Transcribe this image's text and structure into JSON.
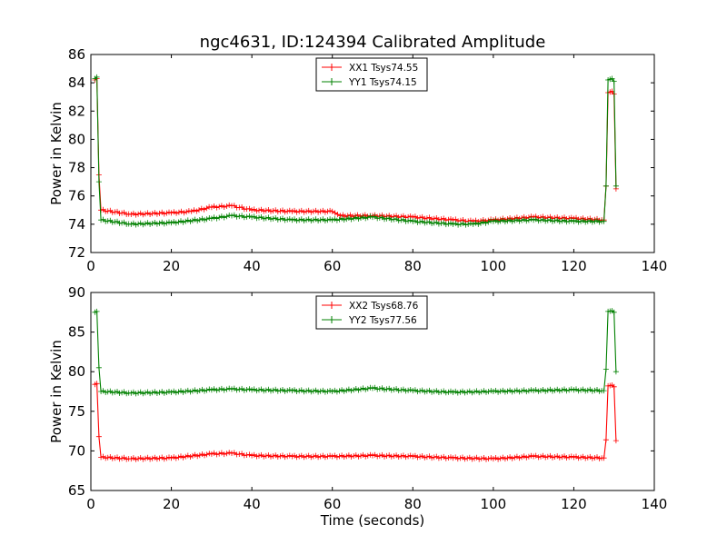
{
  "figure": {
    "title": "ngc4631, ID:124394 Calibrated Amplitude",
    "xlabel": "Time (seconds)"
  },
  "colors": {
    "red": "#ff0000",
    "green": "#008000"
  },
  "chart_data": [
    {
      "type": "line",
      "ylabel": "Power in Kelvin",
      "xlim": [
        0,
        140
      ],
      "ylim": [
        72,
        86
      ],
      "xticks": [
        0,
        20,
        40,
        60,
        80,
        100,
        120,
        140
      ],
      "yticks": [
        72,
        74,
        76,
        78,
        80,
        82,
        84,
        86
      ],
      "grid": false,
      "legend": "top-center",
      "series": [
        {
          "name": "XX1 Tsys74.55",
          "color": "#ff0000",
          "marker": "+",
          "points": [
            [
              1,
              84.2
            ],
            [
              1.5,
              84.3
            ],
            [
              2,
              77.5
            ],
            [
              2.5,
              75.0
            ],
            [
              10,
              74.7
            ],
            [
              20,
              74.8
            ],
            [
              25,
              74.9
            ],
            [
              30,
              75.2
            ],
            [
              35,
              75.3
            ],
            [
              40,
              75.0
            ],
            [
              50,
              74.9
            ],
            [
              60,
              74.9
            ],
            [
              62,
              74.6
            ],
            [
              70,
              74.6
            ],
            [
              80,
              74.5
            ],
            [
              90,
              74.3
            ],
            [
              95,
              74.2
            ],
            [
              100,
              74.3
            ],
            [
              110,
              74.5
            ],
            [
              120,
              74.4
            ],
            [
              127.5,
              74.3
            ],
            [
              128,
              76.7
            ],
            [
              128.5,
              83.3
            ],
            [
              129.5,
              83.4
            ],
            [
              130,
              83.2
            ],
            [
              130.5,
              76.5
            ]
          ]
        },
        {
          "name": "YY1 Tsys74.15",
          "color": "#008000",
          "marker": "+",
          "points": [
            [
              1,
              84.3
            ],
            [
              1.5,
              84.4
            ],
            [
              2,
              77.0
            ],
            [
              2.5,
              74.3
            ],
            [
              10,
              74.0
            ],
            [
              20,
              74.1
            ],
            [
              30,
              74.4
            ],
            [
              35,
              74.6
            ],
            [
              40,
              74.5
            ],
            [
              50,
              74.3
            ],
            [
              60,
              74.3
            ],
            [
              70,
              74.5
            ],
            [
              80,
              74.2
            ],
            [
              90,
              74.0
            ],
            [
              95,
              74.0
            ],
            [
              100,
              74.2
            ],
            [
              110,
              74.3
            ],
            [
              120,
              74.2
            ],
            [
              127.5,
              74.2
            ],
            [
              128,
              76.7
            ],
            [
              128.5,
              84.2
            ],
            [
              129.5,
              84.3
            ],
            [
              130,
              84.1
            ],
            [
              130.5,
              76.7
            ]
          ]
        }
      ]
    },
    {
      "type": "line",
      "ylabel": "Power in Kelvin",
      "xlim": [
        0,
        140
      ],
      "ylim": [
        65,
        90
      ],
      "xticks": [
        0,
        20,
        40,
        60,
        80,
        100,
        120,
        140
      ],
      "yticks": [
        65,
        70,
        75,
        80,
        85,
        90
      ],
      "grid": false,
      "legend": "top-center",
      "series": [
        {
          "name": "XX2 Tsys68.76",
          "color": "#ff0000",
          "marker": "+",
          "points": [
            [
              1,
              78.4
            ],
            [
              1.5,
              78.5
            ],
            [
              2,
              71.8
            ],
            [
              2.5,
              69.2
            ],
            [
              10,
              69.0
            ],
            [
              20,
              69.1
            ],
            [
              30,
              69.6
            ],
            [
              35,
              69.7
            ],
            [
              40,
              69.4
            ],
            [
              50,
              69.3
            ],
            [
              60,
              69.3
            ],
            [
              70,
              69.4
            ],
            [
              80,
              69.3
            ],
            [
              90,
              69.1
            ],
            [
              100,
              69.0
            ],
            [
              110,
              69.3
            ],
            [
              120,
              69.2
            ],
            [
              127.5,
              69.1
            ],
            [
              128,
              71.4
            ],
            [
              128.5,
              78.2
            ],
            [
              129.5,
              78.3
            ],
            [
              130,
              78.1
            ],
            [
              130.5,
              71.3
            ]
          ]
        },
        {
          "name": "YY2 Tsys77.56",
          "color": "#008000",
          "marker": "+",
          "points": [
            [
              1,
              87.5
            ],
            [
              1.5,
              87.6
            ],
            [
              2,
              80.5
            ],
            [
              2.5,
              77.5
            ],
            [
              10,
              77.3
            ],
            [
              20,
              77.4
            ],
            [
              30,
              77.7
            ],
            [
              35,
              77.8
            ],
            [
              40,
              77.7
            ],
            [
              50,
              77.6
            ],
            [
              60,
              77.5
            ],
            [
              70,
              77.9
            ],
            [
              80,
              77.6
            ],
            [
              90,
              77.4
            ],
            [
              100,
              77.5
            ],
            [
              110,
              77.6
            ],
            [
              120,
              77.7
            ],
            [
              127.5,
              77.6
            ],
            [
              128,
              80.3
            ],
            [
              128.5,
              87.6
            ],
            [
              129.5,
              87.7
            ],
            [
              130,
              87.5
            ],
            [
              130.5,
              80.0
            ]
          ]
        }
      ]
    }
  ]
}
